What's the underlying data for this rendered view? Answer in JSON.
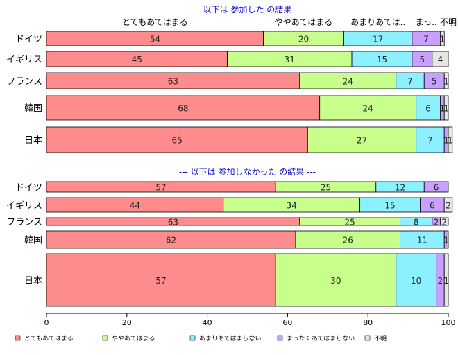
{
  "chart_data": {
    "type": "bar",
    "orientation": "horizontal",
    "stacked": true,
    "xlim": [
      0,
      100
    ],
    "x_ticks": [
      "0",
      "20",
      "40",
      "60",
      "80",
      "100"
    ],
    "column_headers": [
      "とてもあてはまる",
      "ややあてはまる",
      "あまりあては..",
      "まっ..",
      "不明"
    ],
    "legend": {
      "placement": "bottom",
      "entries": [
        {
          "name": "とてもあてはまる",
          "color": "#ff8c8c"
        },
        {
          "name": "ややあてはまる",
          "color": "#c8ff8c"
        },
        {
          "name": "あまりあてはまらない",
          "color": "#8cf0ff"
        },
        {
          "name": "まったくあてはまらない",
          "color": "#c8a0ff"
        },
        {
          "name": "不明",
          "color": "#e6e6e6"
        }
      ]
    },
    "panels": [
      {
        "title": "--- 以下は 参加した の結果 ---",
        "categories": [
          "ドイツ",
          "イギリス",
          "フランス",
          "韓国",
          "日本"
        ],
        "values": [
          [
            54,
            20,
            17,
            7,
            1
          ],
          [
            45,
            31,
            15,
            5,
            4
          ],
          [
            63,
            24,
            7,
            5,
            1
          ],
          [
            68,
            24,
            6,
            1,
            1
          ],
          [
            65,
            27,
            7,
            1,
            1
          ]
        ]
      },
      {
        "title": "--- 以下は 参加しなかった の結果 ---",
        "categories": [
          "ドイツ",
          "イギリス",
          "フランス",
          "韓国",
          "日本"
        ],
        "values": [
          [
            57,
            25,
            12,
            6,
            0
          ],
          [
            44,
            34,
            15,
            6,
            2
          ],
          [
            63,
            25,
            8,
            2,
            2
          ],
          [
            62,
            26,
            11,
            1,
            0
          ],
          [
            57,
            30,
            10,
            2,
            1
          ]
        ]
      }
    ]
  }
}
